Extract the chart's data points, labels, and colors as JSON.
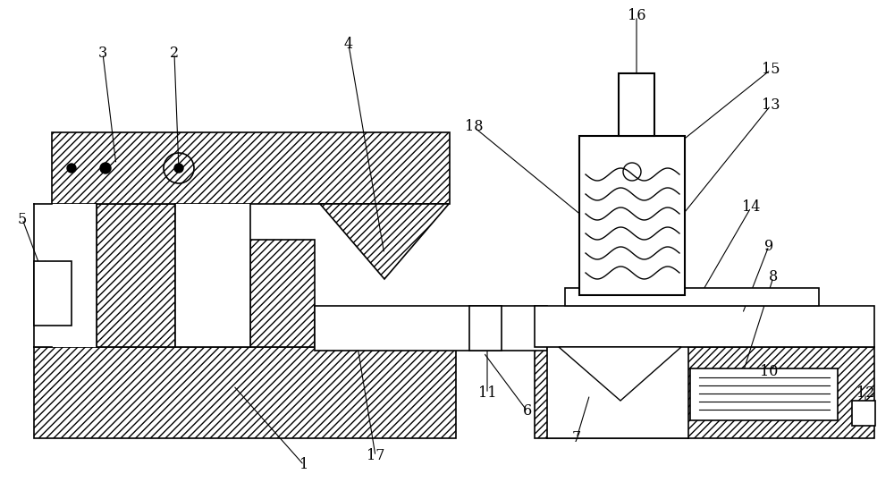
{
  "bg_color": "#ffffff",
  "line_color": "#000000",
  "fig_width": 10.0,
  "fig_height": 5.49,
  "label_data": [
    [
      "1",
      340,
      520,
      260,
      430
    ],
    [
      "2",
      195,
      60,
      200,
      190
    ],
    [
      "3",
      115,
      60,
      130,
      185
    ],
    [
      "4",
      390,
      50,
      430,
      285
    ],
    [
      "5",
      25,
      245,
      55,
      325
    ],
    [
      "6",
      590,
      460,
      540,
      393
    ],
    [
      "7",
      645,
      490,
      660,
      440
    ],
    [
      "8",
      865,
      310,
      830,
      420
    ],
    [
      "9",
      860,
      275,
      830,
      352
    ],
    [
      "10",
      860,
      415,
      835,
      435
    ],
    [
      "11",
      545,
      440,
      545,
      370
    ],
    [
      "12",
      968,
      440,
      968,
      462
    ],
    [
      "13",
      862,
      118,
      762,
      242
    ],
    [
      "14",
      840,
      232,
      782,
      332
    ],
    [
      "15",
      862,
      78,
      762,
      158
    ],
    [
      "16",
      712,
      18,
      712,
      88
    ],
    [
      "17",
      420,
      510,
      400,
      388
    ],
    [
      "18",
      530,
      142,
      652,
      242
    ]
  ]
}
